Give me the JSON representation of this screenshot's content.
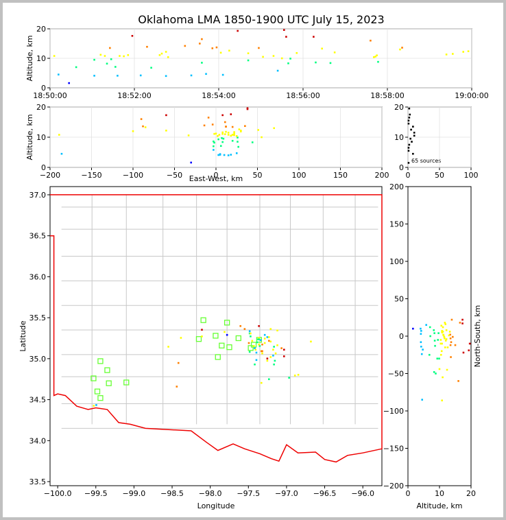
{
  "chart_data": {
    "type": "scatter",
    "title": "Oklahoma LMA 1850-1900 UTC July 15, 2023",
    "source_count_label": "65 sources",
    "colormap": [
      "#0000ff",
      "#00bfff",
      "#00ff80",
      "#ffff00",
      "#ff8000",
      "#cc0000"
    ],
    "time_height": {
      "xlabel": "",
      "ylabel": "Altitude, km",
      "x_ticks": [
        "18:50:00",
        "18:52:00",
        "18:54:00",
        "18:56:00",
        "18:58:00",
        "19:00:00"
      ],
      "xlim_minutes": [
        0,
        10
      ],
      "ylim": [
        0,
        20
      ],
      "y_ticks": [
        "0",
        "10",
        "20"
      ]
    },
    "ew_height": {
      "xlabel": "East-West, km",
      "ylabel": "Altitude, km",
      "xlim": [
        -200,
        200
      ],
      "x_ticks": [
        "−200",
        "−150",
        "−100",
        "−50",
        "0",
        "50",
        "100",
        "150",
        "200"
      ],
      "ylim": [
        0,
        20
      ],
      "y_ticks": [
        "0",
        "10",
        "20"
      ]
    },
    "histogram": {
      "xlim": [
        0,
        100
      ],
      "x_ticks": [
        "0",
        "50",
        "100"
      ],
      "ylim": [
        0,
        20
      ],
      "y_ticks": [
        "0",
        "10",
        "20"
      ]
    },
    "plan_view": {
      "xlabel": "Longitude",
      "ylabel": "Latitude",
      "xlim": [
        -100.1,
        -95.75
      ],
      "ylim": [
        33.45,
        37.1
      ],
      "x_ticks": [
        "−100.0",
        "−99.5",
        "−99.0",
        "−98.5",
        "−98.0",
        "−97.5",
        "−97.0",
        "−96.5",
        "−96.0"
      ],
      "y_ticks": [
        "33.5",
        "34.0",
        "34.5",
        "35.0",
        "35.5",
        "36.0",
        "36.5",
        "37.0"
      ],
      "stations": [
        [
          -99.44,
          34.97
        ],
        [
          -99.35,
          34.86
        ],
        [
          -99.53,
          34.76
        ],
        [
          -99.33,
          34.7
        ],
        [
          -99.48,
          34.6
        ],
        [
          -99.44,
          34.52
        ],
        [
          -99.1,
          34.71
        ],
        [
          -98.15,
          35.24
        ],
        [
          -98.09,
          35.47
        ],
        [
          -97.93,
          35.28
        ],
        [
          -97.85,
          35.16
        ],
        [
          -97.9,
          35.02
        ],
        [
          -97.78,
          35.44
        ],
        [
          -97.75,
          35.14
        ],
        [
          -97.63,
          35.25
        ],
        [
          -97.47,
          35.13
        ],
        [
          -97.43,
          35.17
        ],
        [
          -97.36,
          35.23
        ]
      ]
    },
    "ns_height": {
      "xlabel": "Altitude, km",
      "ylabel": "North-South, km",
      "xlim": [
        0,
        20
      ],
      "x_ticks": [
        "0",
        "10",
        "20"
      ],
      "ylim": [
        -200,
        200
      ],
      "y_ticks": [
        "−200",
        "−150",
        "−100",
        "−50",
        "0",
        "50",
        "100",
        "150",
        "200"
      ]
    },
    "sources": [
      {
        "t": 0.1,
        "ew": -189,
        "ns": -86,
        "z": 10.8
      },
      {
        "t": 0.2,
        "ew": -186,
        "ns": -85,
        "z": 4.5
      },
      {
        "t": 0.45,
        "ew": -30,
        "ns": 10,
        "z": 1.6
      },
      {
        "t": 0.62,
        "ew": -3,
        "ns": 12,
        "z": 7.0
      },
      {
        "t": 1.05,
        "ew": 9,
        "ns": -5,
        "z": 9.5
      },
      {
        "t": 1.05,
        "ew": 10,
        "ns": 3,
        "z": 4.1
      },
      {
        "t": 1.2,
        "ew": 0,
        "ns": 2,
        "z": 11.2
      },
      {
        "t": 1.3,
        "ew": 4,
        "ns": -10,
        "z": 10.8
      },
      {
        "t": 1.35,
        "ew": -2,
        "ns": 8,
        "z": 8.2
      },
      {
        "t": 1.42,
        "ew": 12,
        "ns": -3,
        "z": 13.5
      },
      {
        "t": 1.45,
        "ew": 7,
        "ns": 4,
        "z": 9.7
      },
      {
        "t": 1.55,
        "ew": 6,
        "ns": 0,
        "z": 7.1
      },
      {
        "t": 1.6,
        "ew": 3,
        "ns": -8,
        "z": 4.1
      },
      {
        "t": 1.65,
        "ew": 15,
        "ns": 5,
        "z": 10.8
      },
      {
        "t": 1.75,
        "ew": 22,
        "ns": -20,
        "z": 10.7
      },
      {
        "t": 1.85,
        "ew": 8,
        "ns": 6,
        "z": 11.1
      },
      {
        "t": 1.95,
        "ew": 18,
        "ns": -22,
        "z": 17.6
      },
      {
        "t": 2.15,
        "ew": 5,
        "ns": -14,
        "z": 4.2
      },
      {
        "t": 2.3,
        "ew": -14,
        "ns": 22,
        "z": 13.9
      },
      {
        "t": 2.4,
        "ew": 27,
        "ns": -25,
        "z": 6.8
      },
      {
        "t": 2.6,
        "ew": -2,
        "ns": 12,
        "z": 11.1
      },
      {
        "t": 2.65,
        "ew": 8,
        "ns": -3,
        "z": 11.6
      },
      {
        "t": 2.75,
        "ew": 30,
        "ns": -4,
        "z": 12.2
      },
      {
        "t": 2.75,
        "ew": 15,
        "ns": 10,
        "z": 4.0
      },
      {
        "t": 2.8,
        "ew": 2,
        "ns": -5,
        "z": 10.4
      },
      {
        "t": 3.2,
        "ew": -4,
        "ns": -1,
        "z": 14.2
      },
      {
        "t": 3.35,
        "ew": 18,
        "ns": 7,
        "z": 4.2
      },
      {
        "t": 3.55,
        "ew": 11,
        "ns": -12,
        "z": 15.0
      },
      {
        "t": 3.6,
        "ew": -9,
        "ns": 18,
        "z": 16.5
      },
      {
        "t": 3.6,
        "ew": 26,
        "ns": -6,
        "z": 8.5
      },
      {
        "t": 3.7,
        "ew": 25,
        "ns": -18,
        "z": 4.7
      },
      {
        "t": 3.85,
        "ew": 20,
        "ns": 2,
        "z": 13.4
      },
      {
        "t": 3.95,
        "ew": 35,
        "ns": -8,
        "z": 13.7
      },
      {
        "t": 4.05,
        "ew": 30,
        "ns": 16,
        "z": 11.9
      },
      {
        "t": 4.1,
        "ew": 5,
        "ns": -24,
        "z": 4.4
      },
      {
        "t": 4.25,
        "ew": 28,
        "ns": -15,
        "z": 12.6
      },
      {
        "t": 4.45,
        "ew": 38,
        "ns": -19,
        "z": 19.3
      },
      {
        "t": 4.7,
        "ew": 3,
        "ns": -30,
        "z": 9.3
      },
      {
        "t": 4.7,
        "ew": 22,
        "ns": 18,
        "z": 11.7
      },
      {
        "t": 4.95,
        "ew": 12,
        "ns": -12,
        "z": 13.5
      },
      {
        "t": 5.05,
        "ew": 18,
        "ns": -25,
        "z": 10.5
      },
      {
        "t": 5.3,
        "ew": 20,
        "ns": 7,
        "z": 10.8
      },
      {
        "t": 5.4,
        "ew": -3,
        "ns": 15,
        "z": 5.8
      },
      {
        "t": 5.5,
        "ew": 55,
        "ns": -44,
        "z": 10.0
      },
      {
        "t": 5.55,
        "ew": 38,
        "ns": -10,
        "z": 19.6
      },
      {
        "t": 5.6,
        "ew": 8,
        "ns": 22,
        "z": 17.3
      },
      {
        "t": 5.65,
        "ew": 44,
        "ns": -48,
        "z": 8.3
      },
      {
        "t": 5.7,
        "ew": 26,
        "ns": -30,
        "z": 9.9
      },
      {
        "t": 5.85,
        "ew": 12,
        "ns": -15,
        "z": 11.8
      },
      {
        "t": 6.25,
        "ew": -60,
        "ns": 17,
        "z": 17.3
      },
      {
        "t": 6.3,
        "ew": -3,
        "ns": -13,
        "z": 8.6
      },
      {
        "t": 6.45,
        "ew": -85,
        "ns": 6,
        "z": 13.3
      },
      {
        "t": 6.65,
        "ew": 8,
        "ns": 4,
        "z": 8.4
      },
      {
        "t": 6.75,
        "ew": -100,
        "ns": -6,
        "z": 12.0
      },
      {
        "t": 7.6,
        "ew": -90,
        "ns": -60,
        "z": 16.0
      },
      {
        "t": 7.68,
        "ew": 25,
        "ns": -10,
        "z": 10.4
      },
      {
        "t": 7.72,
        "ew": -33,
        "ns": 14,
        "z": 10.6
      },
      {
        "t": 7.75,
        "ew": 11,
        "ns": -55,
        "z": 11.0
      },
      {
        "t": 7.78,
        "ew": 20,
        "ns": -50,
        "z": 8.8
      },
      {
        "t": 8.3,
        "ew": 70,
        "ns": 1,
        "z": 13.0
      },
      {
        "t": 8.35,
        "ew": -88,
        "ns": -28,
        "z": 13.6
      },
      {
        "t": 9.4,
        "ew": 22,
        "ns": 1,
        "z": 11.3
      },
      {
        "t": 9.55,
        "ew": 15,
        "ns": -1,
        "z": 11.5
      },
      {
        "t": 9.8,
        "ew": -60,
        "ns": 8,
        "z": 12.2
      },
      {
        "t": 9.92,
        "ew": 51,
        "ns": -45,
        "z": 12.4
      }
    ]
  }
}
